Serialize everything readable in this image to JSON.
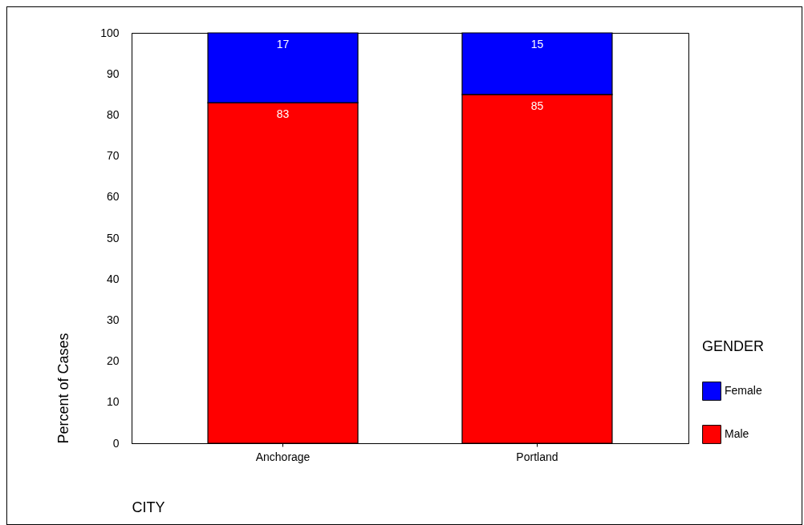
{
  "chart_data": {
    "type": "bar",
    "stacked": true,
    "xlabel": "CITY",
    "ylabel": "Percent of Cases",
    "legend_title": "GENDER",
    "legend": "right",
    "categories": [
      "Anchorage",
      "Portland"
    ],
    "series": [
      {
        "name": "Male",
        "color": "#ff0000",
        "values": [
          83,
          85
        ]
      },
      {
        "name": "Female",
        "color": "#0000ff",
        "values": [
          17,
          15
        ]
      }
    ],
    "ylim": [
      0,
      100
    ],
    "yticks": [
      0,
      10,
      20,
      30,
      40,
      50,
      60,
      70,
      80,
      90,
      100
    ],
    "grid": false,
    "data_labels": true
  }
}
